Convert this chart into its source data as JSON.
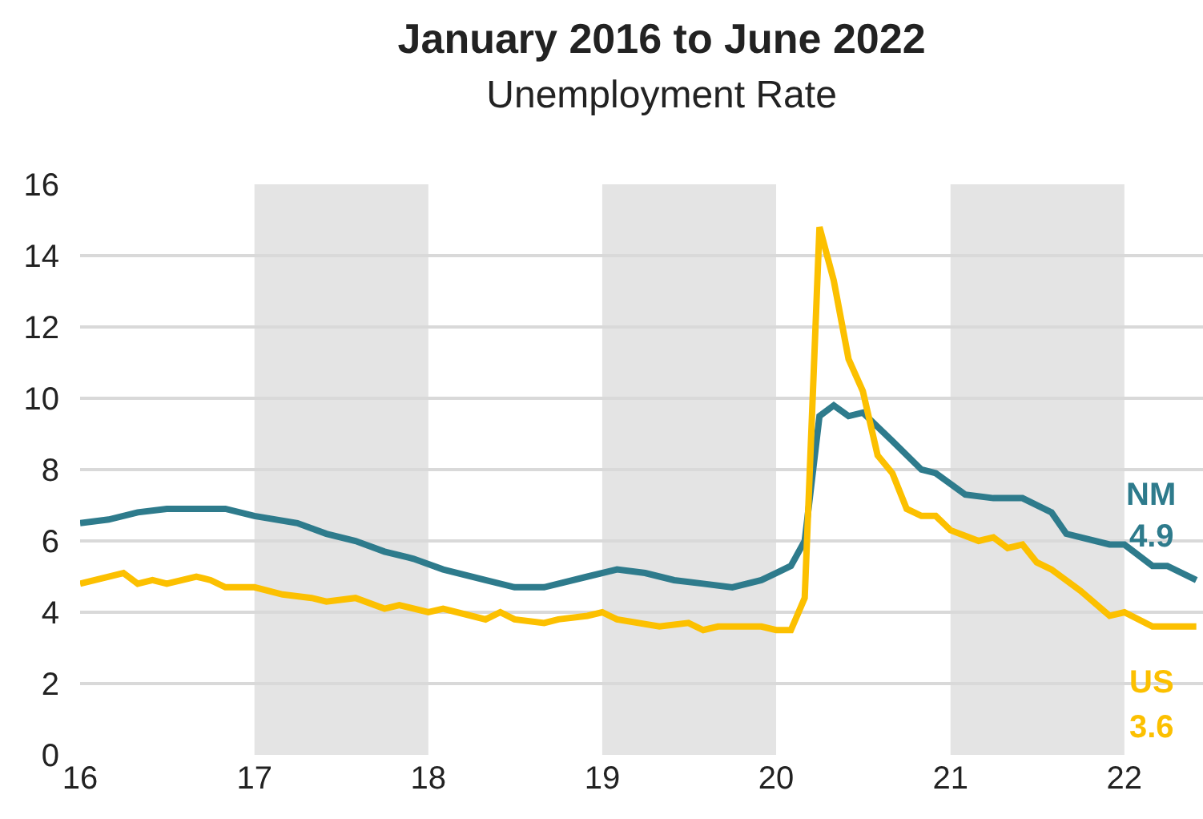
{
  "chart_data": {
    "type": "line",
    "title": "January 2016 to June 2022",
    "subtitle": "Unemployment Rate",
    "xlim": [
      "2016-01-01",
      "2022-06-15"
    ],
    "xticks": [
      {
        "value": "2016-01-01",
        "label": "16"
      },
      {
        "value": "2017-01-01",
        "label": "17"
      },
      {
        "value": "2018-01-01",
        "label": "18"
      },
      {
        "value": "2019-01-01",
        "label": "19"
      },
      {
        "value": "2020-01-01",
        "label": "20"
      },
      {
        "value": "2021-01-01",
        "label": "21"
      },
      {
        "value": "2022-01-01",
        "label": "22"
      }
    ],
    "ylim": [
      0,
      16
    ],
    "yticks": [
      0,
      2,
      4,
      6,
      8,
      10,
      12,
      14,
      16
    ],
    "grid": "y",
    "legend": false,
    "bands": [
      {
        "axis": "x",
        "from": "2017-01-01",
        "to": "2018-01-01",
        "color": "#e4e4e4"
      },
      {
        "axis": "x",
        "from": "2019-01-01",
        "to": "2020-01-01",
        "color": "#e4e4e4"
      },
      {
        "axis": "x",
        "from": "2021-01-01",
        "to": "2022-01-01",
        "color": "#e4e4e4"
      }
    ],
    "series": [
      {
        "name": "NM",
        "color": "#2e7b8c",
        "x": [
          "2016-01",
          "2016-03",
          "2016-05",
          "2016-07",
          "2016-11",
          "2017-01",
          "2017-04",
          "2017-06",
          "2017-08",
          "2017-10",
          "2017-12",
          "2018-02",
          "2018-05",
          "2018-07",
          "2018-09",
          "2018-12",
          "2019-02",
          "2019-04",
          "2019-06",
          "2019-08",
          "2019-10",
          "2019-12",
          "2020-01",
          "2020-02",
          "2020-03",
          "2020-04",
          "2020-05",
          "2020-06",
          "2020-07",
          "2020-09",
          "2020-11",
          "2020-12",
          "2021-02",
          "2021-04",
          "2021-06",
          "2021-08",
          "2021-09",
          "2021-12",
          "2022-01",
          "2022-03",
          "2022-04",
          "2022-06"
        ],
        "values": [
          6.5,
          6.6,
          6.8,
          6.9,
          6.9,
          6.7,
          6.5,
          6.2,
          6.0,
          5.7,
          5.5,
          5.2,
          4.9,
          4.7,
          4.7,
          5.0,
          5.2,
          5.1,
          4.9,
          4.8,
          4.7,
          4.9,
          5.1,
          5.3,
          6.0,
          9.5,
          9.8,
          9.5,
          9.6,
          8.8,
          8.0,
          7.9,
          7.3,
          7.2,
          7.2,
          6.8,
          6.2,
          5.9,
          5.9,
          5.3,
          5.3,
          4.9
        ],
        "value_labels": [
          null,
          null,
          null,
          null,
          null,
          null,
          null,
          null,
          null,
          null,
          null,
          null,
          null,
          null,
          null,
          null,
          null,
          null,
          null,
          null,
          null,
          null,
          null,
          null,
          null,
          null,
          null,
          null,
          null,
          null,
          null,
          null,
          null,
          null,
          null,
          null,
          null,
          null,
          null,
          null,
          null,
          "4.9"
        ]
      },
      {
        "name": "US",
        "color": "#fcc000",
        "x": [
          "2016-01",
          "2016-04",
          "2016-05",
          "2016-06",
          "2016-07",
          "2016-09",
          "2016-10",
          "2016-11",
          "2017-01",
          "2017-03",
          "2017-05",
          "2017-06",
          "2017-08",
          "2017-10",
          "2017-11",
          "2018-01",
          "2018-02",
          "2018-05",
          "2018-06",
          "2018-07",
          "2018-09",
          "2018-10",
          "2018-12",
          "2019-01",
          "2019-02",
          "2019-05",
          "2019-07",
          "2019-08",
          "2019-09",
          "2019-12",
          "2020-01",
          "2020-02",
          "2020-03",
          "2020-04",
          "2020-05",
          "2020-06",
          "2020-07",
          "2020-08",
          "2020-09",
          "2020-10",
          "2020-11",
          "2020-12",
          "2021-01",
          "2021-03",
          "2021-04",
          "2021-05",
          "2021-06",
          "2021-07",
          "2021-08",
          "2021-10",
          "2021-12",
          "2022-01",
          "2022-03",
          "2022-06"
        ],
        "values": [
          4.8,
          5.1,
          4.8,
          4.9,
          4.8,
          5.0,
          4.9,
          4.7,
          4.7,
          4.5,
          4.4,
          4.3,
          4.4,
          4.1,
          4.2,
          4.0,
          4.1,
          3.8,
          4.0,
          3.8,
          3.7,
          3.8,
          3.9,
          4.0,
          3.8,
          3.6,
          3.7,
          3.5,
          3.6,
          3.6,
          3.5,
          3.5,
          4.4,
          14.8,
          13.3,
          11.1,
          10.2,
          8.4,
          7.9,
          6.9,
          6.7,
          6.7,
          6.3,
          6.0,
          6.1,
          5.8,
          5.9,
          5.4,
          5.2,
          4.6,
          3.9,
          4.0,
          3.6,
          3.6
        ],
        "value_labels": [
          null,
          null,
          null,
          null,
          null,
          null,
          null,
          null,
          null,
          null,
          null,
          null,
          null,
          null,
          null,
          null,
          null,
          null,
          null,
          null,
          null,
          null,
          null,
          null,
          null,
          null,
          null,
          null,
          null,
          null,
          null,
          null,
          null,
          null,
          null,
          null,
          null,
          null,
          null,
          null,
          null,
          null,
          null,
          null,
          null,
          null,
          null,
          null,
          null,
          null,
          null,
          null,
          null,
          "3.6"
        ]
      }
    ]
  }
}
